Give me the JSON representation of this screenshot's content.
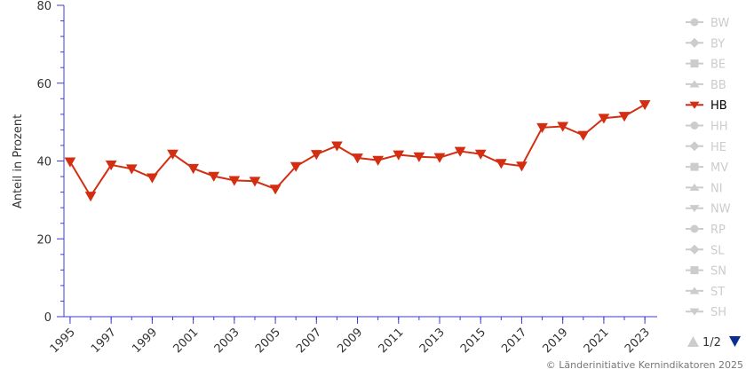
{
  "chart_data": {
    "type": "line",
    "ylabel": "Anteil in Prozent",
    "xlabel": "",
    "ylim": [
      0,
      80
    ],
    "y_ticks": [
      0,
      20,
      40,
      60,
      80
    ],
    "x_tick_labels": [
      "1995",
      "1997",
      "1999",
      "2001",
      "2003",
      "2005",
      "2007",
      "2009",
      "2011",
      "2013",
      "2015",
      "2017",
      "2019",
      "2021",
      "2023"
    ],
    "x": [
      1995,
      1996,
      1997,
      1998,
      1999,
      2000,
      2001,
      2002,
      2003,
      2004,
      2005,
      2006,
      2007,
      2008,
      2009,
      2010,
      2011,
      2012,
      2013,
      2014,
      2015,
      2016,
      2017,
      2018,
      2019,
      2020,
      2021,
      2022,
      2023
    ],
    "series": [
      {
        "name": "HB",
        "color": "#d42e12",
        "values": [
          39.8,
          31.0,
          39.0,
          38.0,
          35.7,
          41.8,
          38.1,
          36.1,
          35.0,
          34.8,
          32.8,
          38.6,
          41.7,
          43.9,
          40.8,
          40.2,
          41.6,
          41.1,
          40.9,
          42.5,
          41.8,
          39.4,
          38.7,
          48.6,
          48.9,
          46.6,
          51.0,
          51.5,
          54.5
        ]
      }
    ],
    "legend": {
      "placement": "right",
      "items": [
        {
          "label": "BW",
          "marker": "circle",
          "active": false
        },
        {
          "label": "BY",
          "marker": "diamond",
          "active": false
        },
        {
          "label": "BE",
          "marker": "square",
          "active": false
        },
        {
          "label": "BB",
          "marker": "triangle",
          "active": false
        },
        {
          "label": "HB",
          "marker": "triangle-down",
          "active": true
        },
        {
          "label": "HH",
          "marker": "circle",
          "active": false
        },
        {
          "label": "HE",
          "marker": "diamond",
          "active": false
        },
        {
          "label": "MV",
          "marker": "square",
          "active": false
        },
        {
          "label": "NI",
          "marker": "triangle",
          "active": false
        },
        {
          "label": "NW",
          "marker": "triangle-down",
          "active": false
        },
        {
          "label": "RP",
          "marker": "circle",
          "active": false
        },
        {
          "label": "SL",
          "marker": "diamond",
          "active": false
        },
        {
          "label": "SN",
          "marker": "square",
          "active": false
        },
        {
          "label": "ST",
          "marker": "triangle",
          "active": false
        },
        {
          "label": "SH",
          "marker": "triangle-down",
          "active": false
        }
      ],
      "page": "1/2"
    },
    "grid": false
  },
  "colors": {
    "axis": "#3b3bd6",
    "inactive": "#cccccc",
    "active_text": "#000000",
    "page_arrow_up": "#cccccc",
    "page_arrow_down": "#0b2e8f"
  },
  "credit": "© Länderinitiative Kernindikatoren 2025"
}
